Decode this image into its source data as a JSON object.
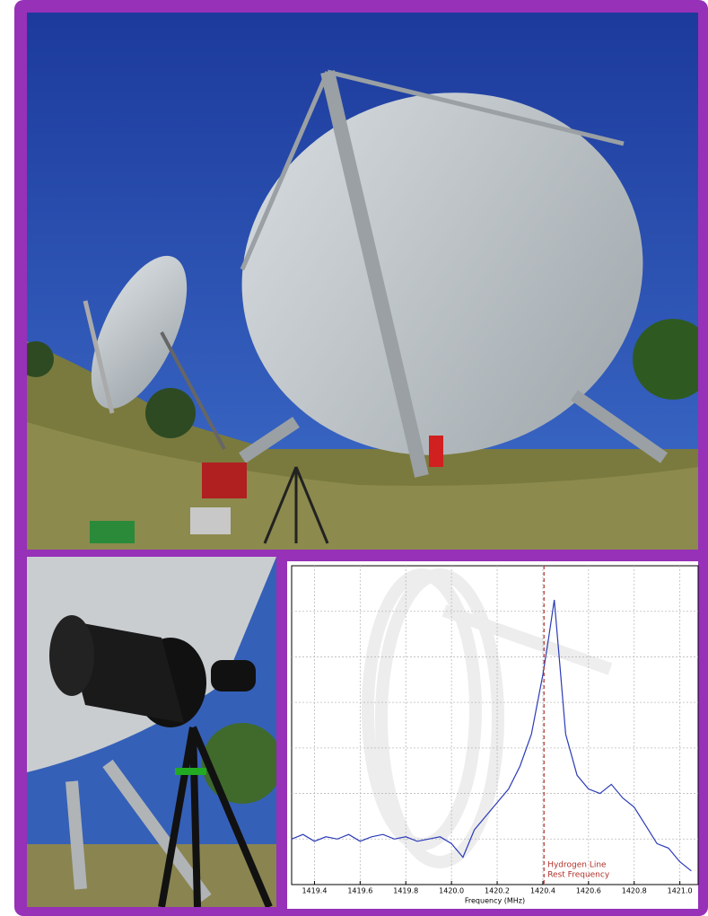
{
  "chart_data": {
    "type": "line",
    "x_label": "Frequency (MHz)",
    "x": [
      1419.3,
      1419.35,
      1419.4,
      1419.45,
      1419.5,
      1419.55,
      1419.6,
      1419.65,
      1419.7,
      1419.75,
      1419.8,
      1419.85,
      1419.9,
      1419.95,
      1420.0,
      1420.05,
      1420.1,
      1420.15,
      1420.2,
      1420.25,
      1420.3,
      1420.35,
      1420.4,
      1420.425,
      1420.45,
      1420.475,
      1420.5,
      1420.55,
      1420.6,
      1420.65,
      1420.7,
      1420.75,
      1420.8,
      1420.85,
      1420.9,
      1420.95,
      1421.0,
      1421.05
    ],
    "values": [
      1.0,
      1.1,
      0.95,
      1.05,
      1.0,
      1.1,
      0.95,
      1.05,
      1.1,
      1.0,
      1.05,
      0.95,
      1.0,
      1.05,
      0.9,
      0.6,
      1.2,
      1.5,
      1.8,
      2.1,
      2.6,
      3.3,
      4.6,
      5.4,
      6.25,
      4.8,
      3.3,
      2.4,
      2.1,
      2.0,
      2.2,
      1.9,
      1.7,
      1.3,
      0.9,
      0.8,
      0.5,
      0.3
    ],
    "color": "#2b3bb8",
    "xlim": [
      1419.3,
      1421.08
    ],
    "ylim": [
      0,
      7
    ],
    "xticks": [
      1419.4,
      1419.6,
      1419.8,
      {
        "value": 1420,
        "label": "1420.0"
      },
      1420.2,
      1420.4,
      1420.6,
      1420.8,
      {
        "value": 1421,
        "label": "1421.0"
      }
    ],
    "grid": true,
    "reference_line": {
      "x": 1420.405,
      "color": "#b0302a",
      "label_lines": [
        "Hydrogen Line",
        "Rest Frequency"
      ]
    }
  }
}
